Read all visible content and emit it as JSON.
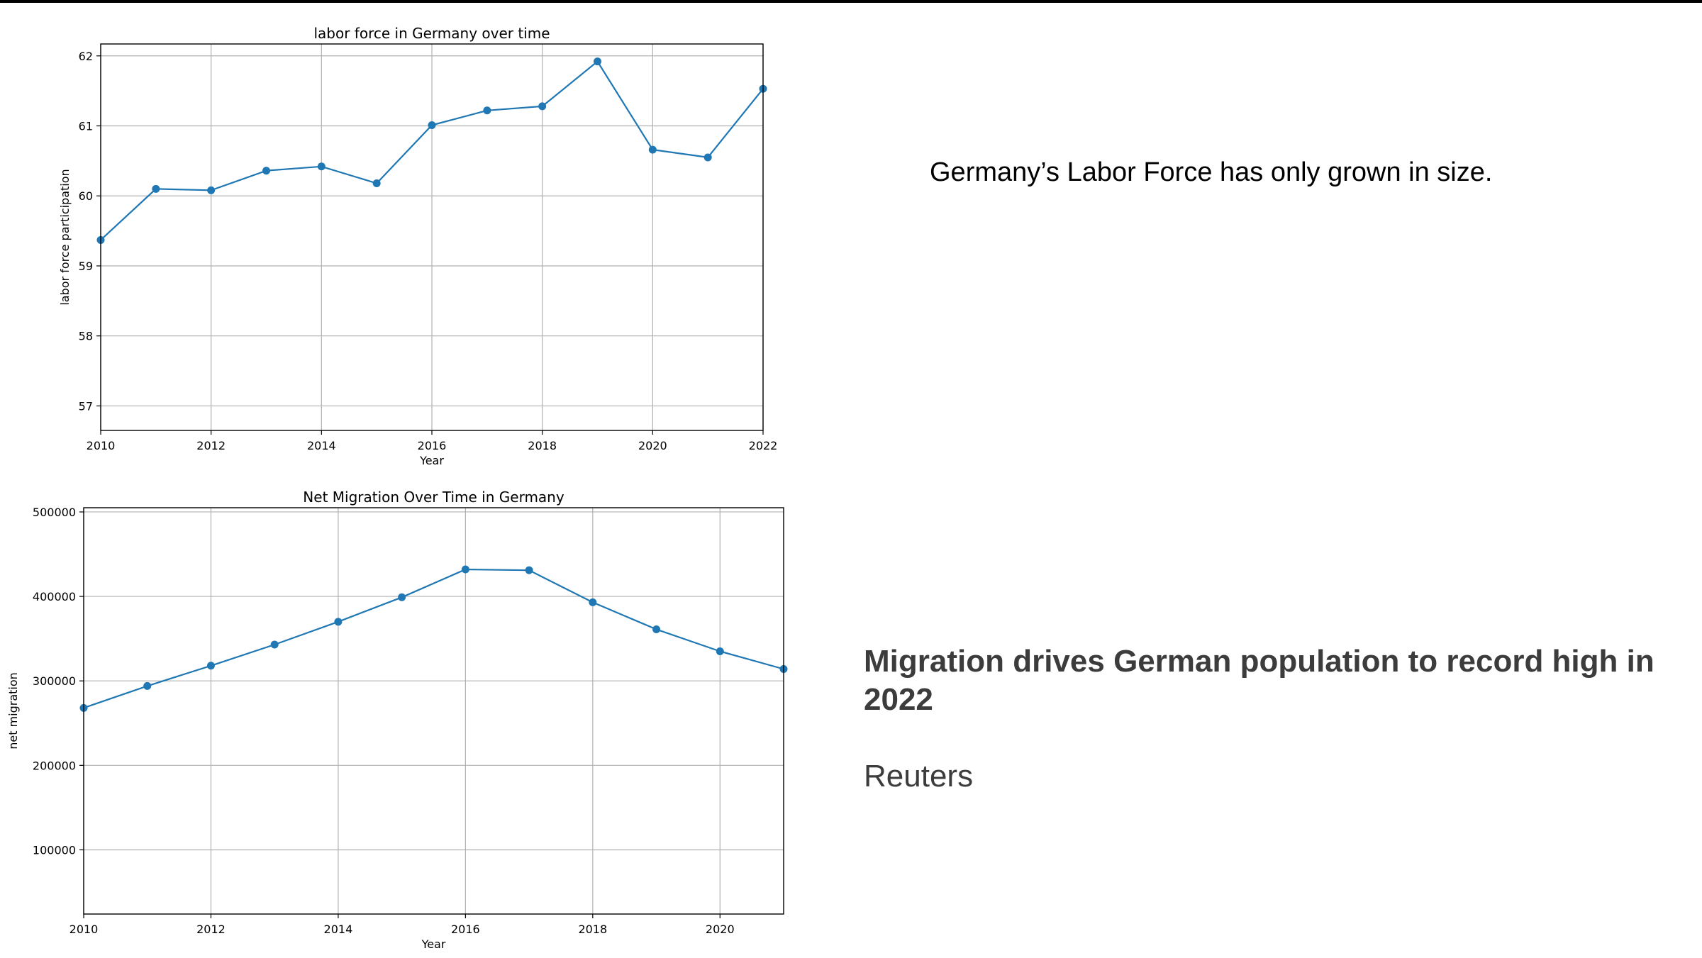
{
  "chart_data": [
    {
      "type": "line",
      "title": "labor force in Germany over time",
      "xlabel": "Year",
      "ylabel": "labor force participation",
      "x": [
        2010,
        2011,
        2012,
        2013,
        2014,
        2015,
        2016,
        2017,
        2018,
        2019,
        2020,
        2021,
        2022
      ],
      "values": [
        59.37,
        60.1,
        60.08,
        60.36,
        60.42,
        60.18,
        61.01,
        61.22,
        61.28,
        61.92,
        60.66,
        60.55,
        61.53
      ],
      "xlim": [
        2010,
        2022
      ],
      "ylim": [
        56.65,
        62.17
      ],
      "xticks": [
        "2010",
        "2012",
        "2014",
        "2016",
        "2018",
        "2020",
        "2022"
      ],
      "yticks": [
        "57",
        "58",
        "59",
        "60",
        "61",
        "62"
      ],
      "grid": true,
      "color": "#1f77b4"
    },
    {
      "type": "line",
      "title": "Net Migration Over Time in Germany",
      "xlabel": "Year",
      "ylabel": "net migration",
      "x": [
        2010,
        2011,
        2012,
        2013,
        2014,
        2015,
        2016,
        2017,
        2018,
        2019,
        2020,
        2021
      ],
      "values": [
        268000,
        294000,
        318000,
        343000,
        370000,
        399000,
        432000,
        431000,
        393000,
        361000,
        335000,
        314000
      ],
      "xlim": [
        2010,
        2021
      ],
      "ylim": [
        24000,
        505000
      ],
      "xticks": [
        "2010",
        "2012",
        "2014",
        "2016",
        "2018",
        "2020"
      ],
      "yticks": [
        "100000",
        "200000",
        "300000",
        "400000",
        "500000"
      ],
      "grid": true,
      "color": "#1f77b4"
    }
  ],
  "text": {
    "labor_caption": "Germany’s Labor Force has only grown in size.",
    "headline": "Migration drives German population to record high in 2022",
    "source": "Reuters"
  }
}
